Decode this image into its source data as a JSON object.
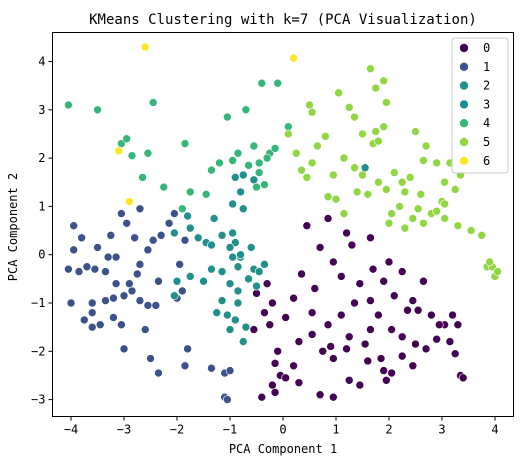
{
  "chart_data": {
    "type": "scatter",
    "title": "KMeans Clustering with k=7 (PCA Visualization)",
    "xlabel": "PCA Component 1",
    "ylabel": "PCA Component 2",
    "xlim": [
      -4.35,
      4.35
    ],
    "ylim": [
      -3.35,
      4.6
    ],
    "xticks": [
      -4,
      -3,
      -2,
      -1,
      0,
      1,
      2,
      3,
      4
    ],
    "yticks": [
      -3,
      -2,
      -1,
      0,
      1,
      2,
      3,
      4
    ],
    "grid": false,
    "legend_position": "top-right",
    "series": [
      {
        "name": "0",
        "color": "#440154",
        "points": [
          [
            0.6,
            -0.7
          ],
          [
            0.35,
            -0.4
          ],
          [
            0.2,
            -0.9
          ],
          [
            -0.2,
            -1.0
          ],
          [
            -0.35,
            -1.2
          ],
          [
            -0.55,
            -1.55
          ],
          [
            -0.75,
            -1.8
          ],
          [
            -0.1,
            -2.0
          ],
          [
            -0.15,
            -2.25
          ],
          [
            -0.05,
            -2.5
          ],
          [
            -0.2,
            -2.7
          ],
          [
            -0.15,
            -2.85
          ],
          [
            -0.4,
            -2.95
          ],
          [
            0.3,
            -1.8
          ],
          [
            0.55,
            -1.65
          ],
          [
            0.75,
            -2.0
          ],
          [
            0.9,
            -1.9
          ],
          [
            0.95,
            -2.15
          ],
          [
            0.2,
            -2.3
          ],
          [
            0.05,
            -2.55
          ],
          [
            0.3,
            -2.65
          ],
          [
            0.7,
            -2.9
          ],
          [
            0.95,
            -2.95
          ],
          [
            1.25,
            -2.6
          ],
          [
            1.45,
            -2.7
          ],
          [
            1.6,
            -2.2
          ],
          [
            1.9,
            -2.4
          ],
          [
            1.95,
            -2.6
          ],
          [
            2.05,
            -2.45
          ],
          [
            2.45,
            -2.3
          ],
          [
            2.25,
            -2.1
          ],
          [
            1.85,
            -2.15
          ],
          [
            1.55,
            -1.85
          ],
          [
            1.25,
            -1.7
          ],
          [
            1.1,
            -1.25
          ],
          [
            0.85,
            -1.45
          ],
          [
            0.55,
            -1.2
          ],
          [
            0.05,
            -1.3
          ],
          [
            -0.25,
            -1.45
          ],
          [
            1.35,
            -1.0
          ],
          [
            1.65,
            -0.95
          ],
          [
            1.8,
            -1.25
          ],
          [
            2.05,
            -1.55
          ],
          [
            2.25,
            -1.7
          ],
          [
            2.5,
            -1.85
          ],
          [
            2.7,
            -1.95
          ],
          [
            2.9,
            -1.75
          ],
          [
            3.05,
            -1.45
          ],
          [
            3.15,
            -1.8
          ],
          [
            3.25,
            -2.05
          ],
          [
            3.35,
            -2.5
          ],
          [
            3.4,
            -2.55
          ],
          [
            2.1,
            -0.85
          ],
          [
            2.45,
            -0.95
          ],
          [
            2.65,
            -0.55
          ],
          [
            2.25,
            -0.35
          ],
          [
            2.0,
            -0.15
          ],
          [
            1.7,
            -0.3
          ],
          [
            1.45,
            -0.6
          ],
          [
            1.1,
            -0.45
          ],
          [
            0.95,
            -0.15
          ],
          [
            1.3,
            0.2
          ],
          [
            1.65,
            0.35
          ],
          [
            1.9,
            -0.55
          ],
          [
            2.35,
            -1.15
          ],
          [
            2.55,
            -1.15
          ],
          [
            2.8,
            -1.25
          ],
          [
            2.95,
            -1.45
          ],
          [
            3.2,
            -1.25
          ],
          [
            3.3,
            -1.45
          ],
          [
            0.7,
            0.15
          ],
          [
            0.85,
            0.75
          ],
          [
            0.45,
            0.6
          ],
          [
            1.2,
            0.45
          ],
          [
            -0.5,
            -0.8
          ],
          [
            -0.3,
            -0.6
          ],
          [
            1.2,
            -1.95
          ],
          [
            1.65,
            -1.55
          ]
        ]
      },
      {
        "name": "1",
        "color": "#3b528b",
        "points": [
          [
            -4.0,
            -1.0
          ],
          [
            -4.05,
            -0.3
          ],
          [
            -3.95,
            0.1
          ],
          [
            -3.85,
            -0.35
          ],
          [
            -3.7,
            -0.25
          ],
          [
            -3.55,
            -0.3
          ],
          [
            -3.5,
            0.15
          ],
          [
            -3.35,
            -0.35
          ],
          [
            -3.3,
            -0.05
          ],
          [
            -3.25,
            0.4
          ],
          [
            -3.15,
            -0.05
          ],
          [
            -3.15,
            -0.6
          ],
          [
            -3.35,
            -0.95
          ],
          [
            -3.6,
            -1.0
          ],
          [
            -3.75,
            -1.35
          ],
          [
            -3.6,
            -1.2
          ],
          [
            -3.45,
            -1.45
          ],
          [
            -3.2,
            -1.3
          ],
          [
            -3.05,
            -1.45
          ],
          [
            -3.0,
            -0.85
          ],
          [
            -2.85,
            -0.75
          ],
          [
            -2.75,
            -0.4
          ],
          [
            -2.7,
            -0.2
          ],
          [
            -2.55,
            0.1
          ],
          [
            -2.45,
            0.3
          ],
          [
            -2.3,
            0.4
          ],
          [
            -2.15,
            0.65
          ],
          [
            -2.95,
            0.65
          ],
          [
            -3.05,
            0.85
          ],
          [
            -2.7,
            0.95
          ],
          [
            -3.0,
            -1.95
          ],
          [
            -2.6,
            -1.55
          ],
          [
            -2.55,
            -1.05
          ],
          [
            -2.4,
            -1.05
          ],
          [
            -2.35,
            -0.55
          ],
          [
            -2.0,
            -0.9
          ],
          [
            -1.95,
            -0.2
          ],
          [
            -2.5,
            -2.15
          ],
          [
            -2.35,
            -2.45
          ],
          [
            -1.8,
            -1.95
          ],
          [
            -1.85,
            -2.3
          ],
          [
            -1.35,
            -2.35
          ],
          [
            -1.1,
            -2.45
          ],
          [
            -1.0,
            -2.4
          ],
          [
            -1.1,
            -2.95
          ],
          [
            -1.05,
            -3.0
          ],
          [
            -1.85,
            0.3
          ],
          [
            -1.9,
            -0.75
          ],
          [
            -3.8,
            0.35
          ],
          [
            -3.95,
            0.6
          ],
          [
            -2.9,
            -0.6
          ],
          [
            -3.6,
            -1.5
          ],
          [
            -3.2,
            -0.9
          ],
          [
            -2.7,
            -0.95
          ],
          [
            -2.8,
            0.35
          ],
          [
            -2.05,
            0.85
          ]
        ]
      },
      {
        "name": "2",
        "color": "#21918c",
        "points": [
          [
            1.55,
            1.8
          ],
          [
            -2.05,
            -0.85
          ],
          [
            -0.95,
            -0.05
          ],
          [
            -0.8,
            -0.05
          ],
          [
            -0.55,
            -0.3
          ]
        ]
      },
      {
        "name": "3",
        "color": "#21908d",
        "points": [
          [
            -1.8,
            0.8
          ],
          [
            -1.75,
            0.55
          ],
          [
            -2.05,
            0.45
          ],
          [
            -1.6,
            0.35
          ],
          [
            -1.45,
            0.25
          ],
          [
            -1.3,
            0.75
          ],
          [
            -1.15,
            0.4
          ],
          [
            -0.95,
            0.45
          ],
          [
            -0.9,
            0.25
          ],
          [
            -1.0,
            0.15
          ],
          [
            -0.8,
            0.0
          ],
          [
            -0.6,
            0.15
          ],
          [
            -0.35,
            -0.2
          ],
          [
            -0.45,
            -0.35
          ],
          [
            -0.65,
            -0.5
          ],
          [
            -0.85,
            -0.75
          ],
          [
            -1.0,
            -0.6
          ],
          [
            -1.15,
            -0.35
          ],
          [
            -1.35,
            -0.3
          ],
          [
            -1.5,
            -0.55
          ],
          [
            -1.75,
            -0.45
          ],
          [
            -2.0,
            -0.55
          ],
          [
            -0.55,
            1.55
          ],
          [
            -0.75,
            1.65
          ],
          [
            -0.9,
            1.6
          ],
          [
            -0.8,
            1.3
          ],
          [
            -0.75,
            0.95
          ],
          [
            -0.95,
            1.05
          ],
          [
            -1.35,
            0.2
          ],
          [
            -0.85,
            -1.0
          ],
          [
            -0.9,
            -1.35
          ],
          [
            -0.7,
            -1.5
          ],
          [
            -0.75,
            -1.8
          ],
          [
            -1.05,
            -1.25
          ],
          [
            -1.15,
            -0.95
          ],
          [
            -1.25,
            -1.2
          ],
          [
            -1.0,
            -1.55
          ],
          [
            -0.5,
            -0.65
          ],
          [
            -0.85,
            -0.25
          ]
        ]
      },
      {
        "name": "4",
        "color": "#35b779",
        "points": [
          [
            -4.05,
            3.1
          ],
          [
            -3.5,
            3.0
          ],
          [
            -3.05,
            2.3
          ],
          [
            -2.95,
            2.4
          ],
          [
            -2.85,
            2.05
          ],
          [
            -2.65,
            1.6
          ],
          [
            -2.55,
            2.1
          ],
          [
            -2.45,
            3.15
          ],
          [
            -1.85,
            2.3
          ],
          [
            -1.35,
            1.75
          ],
          [
            -1.05,
            2.85
          ],
          [
            -0.7,
            3.0
          ],
          [
            -0.4,
            3.55
          ],
          [
            -0.1,
            3.55
          ],
          [
            0.1,
            2.65
          ],
          [
            -0.25,
            2.1
          ],
          [
            -0.45,
            1.9
          ],
          [
            -0.3,
            2.0
          ],
          [
            -0.55,
            2.25
          ],
          [
            -0.65,
            1.85
          ],
          [
            -0.5,
            1.4
          ],
          [
            -0.35,
            1.45
          ],
          [
            -0.95,
            1.95
          ],
          [
            -1.2,
            1.9
          ],
          [
            -1.45,
            1.25
          ],
          [
            -1.75,
            1.3
          ],
          [
            -1.9,
            0.95
          ],
          [
            -2.25,
            1.4
          ],
          [
            -0.15,
            2.2
          ],
          [
            -0.45,
            1.7
          ],
          [
            -0.85,
            2.1
          ]
        ]
      },
      {
        "name": "5",
        "color": "#90d743",
        "points": [
          [
            0.1,
            2.5
          ],
          [
            0.25,
            2.1
          ],
          [
            0.35,
            1.75
          ],
          [
            0.45,
            1.6
          ],
          [
            0.55,
            1.9
          ],
          [
            0.65,
            2.25
          ],
          [
            0.8,
            2.45
          ],
          [
            0.55,
            2.95
          ],
          [
            0.5,
            3.1
          ],
          [
            1.05,
            3.35
          ],
          [
            1.25,
            3.05
          ],
          [
            1.35,
            2.85
          ],
          [
            1.5,
            2.5
          ],
          [
            1.7,
            2.3
          ],
          [
            1.75,
            2.55
          ],
          [
            1.8,
            2.35
          ],
          [
            1.9,
            2.65
          ],
          [
            1.95,
            3.15
          ],
          [
            1.65,
            3.85
          ],
          [
            1.9,
            3.6
          ],
          [
            1.75,
            3.45
          ],
          [
            2.5,
            2.55
          ],
          [
            2.7,
            2.25
          ],
          [
            2.65,
            1.95
          ],
          [
            2.9,
            1.9
          ],
          [
            3.15,
            1.9
          ],
          [
            3.05,
            1.5
          ],
          [
            3.25,
            1.35
          ],
          [
            3.35,
            1.65
          ],
          [
            2.4,
            1.6
          ],
          [
            2.3,
            1.3
          ],
          [
            2.2,
            1.0
          ],
          [
            2.55,
            0.95
          ],
          [
            2.65,
            0.65
          ],
          [
            2.8,
            0.85
          ],
          [
            3.0,
            1.1
          ],
          [
            3.05,
            0.75
          ],
          [
            3.3,
            0.6
          ],
          [
            3.55,
            0.5
          ],
          [
            3.75,
            0.4
          ],
          [
            3.85,
            -0.25
          ],
          [
            4.0,
            -0.45
          ],
          [
            3.95,
            -0.25
          ],
          [
            3.9,
            -0.15
          ],
          [
            4.05,
            -0.35
          ],
          [
            2.25,
            1.5
          ],
          [
            1.95,
            1.35
          ],
          [
            1.8,
            1.5
          ],
          [
            1.6,
            1.25
          ],
          [
            1.4,
            1.3
          ],
          [
            1.15,
            0.85
          ],
          [
            1.0,
            1.15
          ],
          [
            0.85,
            1.2
          ],
          [
            2.05,
            0.85
          ],
          [
            2.0,
            0.65
          ],
          [
            2.3,
            0.55
          ],
          [
            2.45,
            0.75
          ],
          [
            2.9,
            0.9
          ],
          [
            3.05,
            1.05
          ],
          [
            1.5,
            1.65
          ],
          [
            1.15,
            2.0
          ],
          [
            1.35,
            1.8
          ],
          [
            0.95,
            1.65
          ],
          [
            2.1,
            1.7
          ],
          [
            2.6,
            1.25
          ]
        ]
      },
      {
        "name": "6",
        "color": "#fde725",
        "points": [
          [
            -2.6,
            4.3
          ],
          [
            0.2,
            4.07
          ],
          [
            -3.1,
            2.15
          ],
          [
            -2.9,
            1.1
          ]
        ]
      }
    ]
  }
}
